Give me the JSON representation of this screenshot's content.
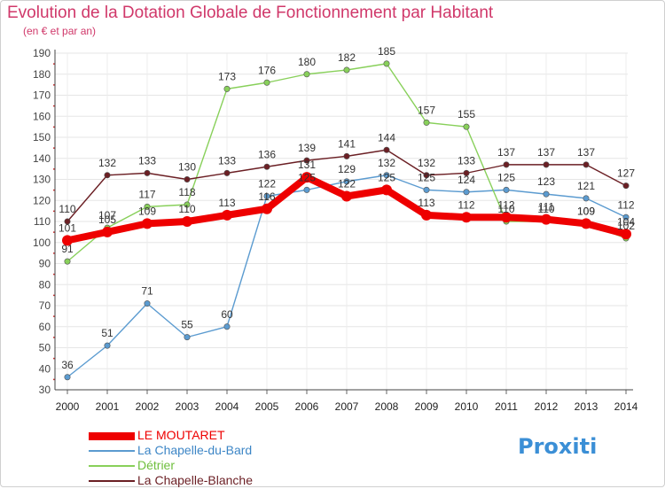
{
  "title": "Evolution de la Dotation Globale de Fonctionnement par Habitant",
  "subtitle": "(en € et par an)",
  "logo_text": "Proxiti",
  "chart_data": {
    "type": "line",
    "x": [
      "2000",
      "2001",
      "2002",
      "2003",
      "2004",
      "2005",
      "2006",
      "2007",
      "2008",
      "2009",
      "2010",
      "2011",
      "2012",
      "2013",
      "2014"
    ],
    "ylim": [
      30,
      190
    ],
    "yticks": [
      30,
      40,
      50,
      60,
      70,
      80,
      90,
      100,
      110,
      120,
      130,
      140,
      150,
      160,
      170,
      180,
      190
    ],
    "grid": true,
    "series": [
      {
        "name": "La Chapelle-du-Bard",
        "color": "#5b9bd0",
        "values": [
          36,
          51,
          71,
          55,
          60,
          122,
          125,
          129,
          132,
          125,
          124,
          125,
          123,
          121,
          112
        ]
      },
      {
        "name": "Détrier",
        "color": "#88d05a",
        "values": [
          91,
          107,
          117,
          118,
          173,
          176,
          180,
          182,
          185,
          157,
          155,
          110,
          110,
          109,
          102
        ]
      },
      {
        "name": "La Chapelle-Blanche",
        "color": "#6b1f24",
        "values": [
          110,
          132,
          133,
          130,
          133,
          136,
          139,
          141,
          144,
          132,
          133,
          137,
          137,
          137,
          127
        ]
      },
      {
        "name": "LE MOUTARET",
        "color": "#ee0000",
        "values": [
          101,
          105,
          109,
          110,
          113,
          116,
          131,
          122,
          125,
          113,
          112,
          112,
          111,
          109,
          104
        ]
      }
    ]
  },
  "legend": [
    {
      "label": "LE MOUTARET",
      "color": "#ee0000"
    },
    {
      "label": "La Chapelle-du-Bard",
      "color": "#5b9bd0"
    },
    {
      "label": "Détrier",
      "color": "#88d05a"
    },
    {
      "label": "La Chapelle-Blanche",
      "color": "#6b1f24"
    }
  ]
}
